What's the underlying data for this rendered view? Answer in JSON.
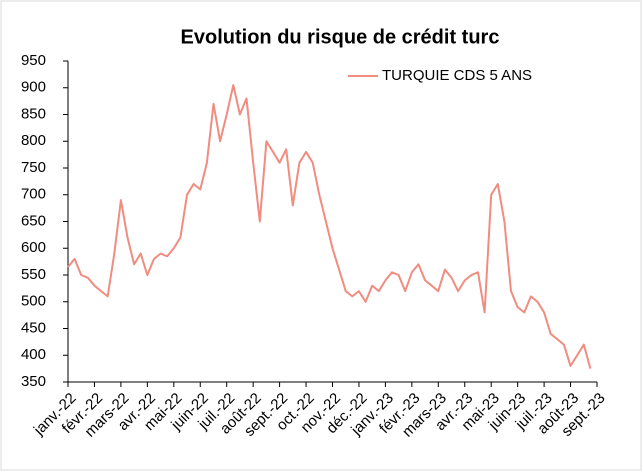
{
  "chart_data": {
    "type": "line",
    "title": "Evolution du risque de crédit turc",
    "categories": [
      "janv.-22",
      null,
      null,
      null,
      "févr.-22",
      null,
      null,
      null,
      "mars-22",
      null,
      null,
      null,
      "avr.-22",
      null,
      null,
      null,
      "mai-22",
      null,
      null,
      null,
      "juin-22",
      null,
      null,
      null,
      "juil.-22",
      null,
      null,
      null,
      "août-22",
      null,
      null,
      null,
      "sept.-22",
      null,
      null,
      null,
      "oct.-22",
      null,
      null,
      null,
      "nov.-22",
      null,
      null,
      null,
      "déc.-22",
      null,
      null,
      null,
      "janv.-23",
      null,
      null,
      null,
      "févr.-23",
      null,
      null,
      null,
      "mars-23",
      null,
      null,
      null,
      "avr.-23",
      null,
      null,
      null,
      "mai-23",
      null,
      null,
      null,
      "juin-23",
      null,
      null,
      null,
      "juil.-23",
      null,
      null,
      null,
      "août-23",
      null,
      null,
      null,
      "sept.-23"
    ],
    "series": [
      {
        "name": "TURQUIE CDS 5 ANS",
        "color": "#f08c80",
        "values": [
          565,
          580,
          550,
          545,
          530,
          520,
          510,
          590,
          690,
          620,
          570,
          590,
          550,
          580,
          590,
          585,
          600,
          620,
          700,
          720,
          710,
          760,
          870,
          800,
          850,
          905,
          850,
          880,
          760,
          650,
          800,
          780,
          760,
          785,
          680,
          760,
          780,
          760,
          700,
          650,
          600,
          560,
          520,
          510,
          520,
          500,
          530,
          520,
          540,
          555,
          550,
          520,
          555,
          570,
          540,
          530,
          520,
          560,
          545,
          520,
          540,
          550,
          555,
          480,
          700,
          720,
          650,
          520,
          490,
          480,
          510,
          500,
          480,
          440,
          430,
          420,
          380,
          400,
          420,
          375,
          null
        ]
      }
    ],
    "ylim": [
      350,
      950
    ],
    "yticks": [
      350,
      400,
      450,
      500,
      550,
      600,
      650,
      700,
      750,
      800,
      850,
      900,
      950
    ],
    "legend": "top-right"
  }
}
